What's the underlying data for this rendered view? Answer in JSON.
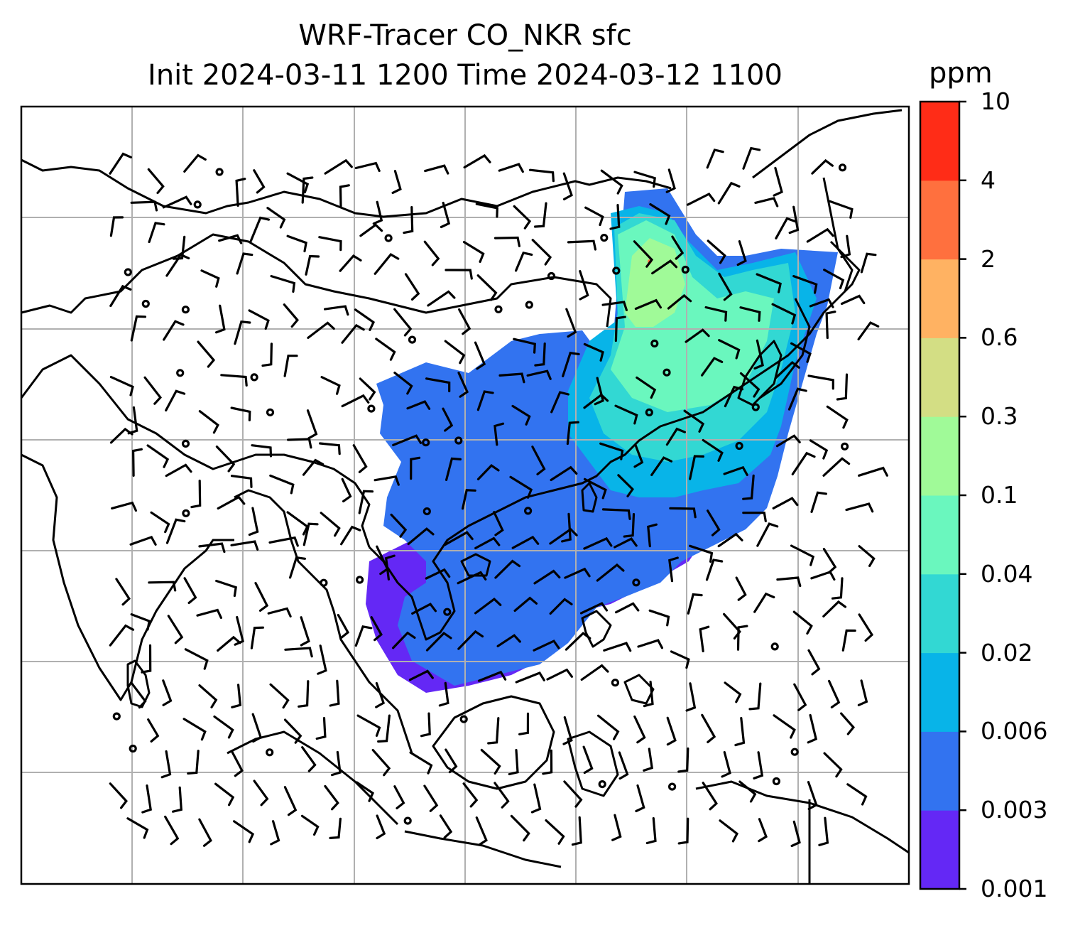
{
  "title": {
    "line1": "WRF-Tracer CO_NKR sfc",
    "line2": "Init 2024-03-11 1200 Time 2024-03-12 1100"
  },
  "colorbar": {
    "unit": "ppm",
    "levels": [
      "0.001",
      "0.003",
      "0.006",
      "0.02",
      "0.04",
      "0.1",
      "0.3",
      "0.6",
      "2",
      "4",
      "10"
    ],
    "colors": [
      "#6428f5",
      "#3273f0",
      "#08b4e8",
      "#32d8d3",
      "#6af7be",
      "#a0fa98",
      "#d3de84",
      "#ffb262",
      "#ff703e",
      "#ff2c17"
    ]
  },
  "map": {
    "gridlines": true,
    "plume_colors": {
      "outer": "#6428f5",
      "main": "#3273f0",
      "mid": "#08b4e8",
      "inner": "#32d8d3",
      "core": "#6af7be",
      "peak": "#a0fa98",
      "hot": "#ff703e"
    }
  }
}
